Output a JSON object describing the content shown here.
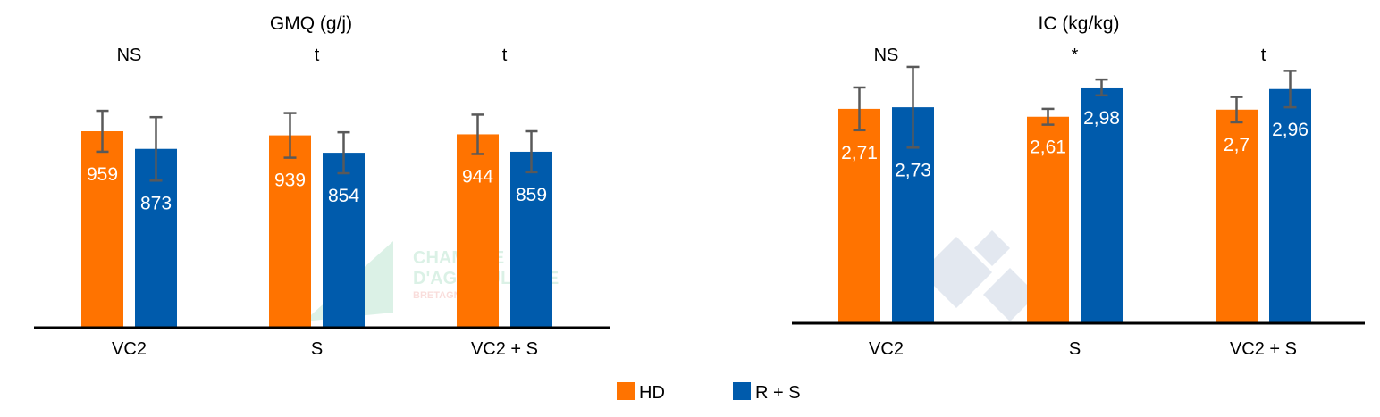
{
  "colors": {
    "HD": "#FF7300",
    "R + S": "#005BAC",
    "error_bar": "#595959",
    "axis": "#000000",
    "label_text": "#FFFFFF"
  },
  "legend": {
    "items": [
      {
        "label": "HD",
        "color": "#FF7300"
      },
      {
        "label": "R + S",
        "color": "#005BAC"
      }
    ],
    "placement": "bottom-center"
  },
  "chart_data": [
    {
      "type": "bar",
      "title": "GMQ (g/j)",
      "categories": [
        "VC2",
        "S",
        "VC2 + S"
      ],
      "significance": [
        "NS",
        "t",
        "t"
      ],
      "series": [
        {
          "name": "HD",
          "values": [
            959,
            939,
            944
          ],
          "error": [
            100,
            109,
            96
          ],
          "labels": [
            "959",
            "939",
            "944"
          ]
        },
        {
          "name": "R + S",
          "values": [
            873,
            854,
            859
          ],
          "error": [
            155,
            100,
            100
          ],
          "labels": [
            "873",
            "854",
            "859"
          ]
        }
      ],
      "ylim": [
        0,
        1000
      ],
      "grid": false
    },
    {
      "type": "bar",
      "title": "IC (kg/kg)",
      "categories": [
        "VC2",
        "S",
        "VC2 + S"
      ],
      "significance": [
        "NS",
        "*",
        "t"
      ],
      "series": [
        {
          "name": "HD",
          "values": [
            2.71,
            2.61,
            2.7
          ],
          "error": [
            0.27,
            0.1,
            0.16
          ],
          "labels": [
            "2,71",
            "2,61",
            "2,7"
          ]
        },
        {
          "name": "R + S",
          "values": [
            2.73,
            2.98,
            2.96
          ],
          "error": [
            0.51,
            0.1,
            0.23
          ],
          "labels": [
            "2,73",
            "2,98",
            "2,96"
          ]
        }
      ],
      "ylim": [
        0,
        3.0
      ],
      "grid": false
    }
  ]
}
